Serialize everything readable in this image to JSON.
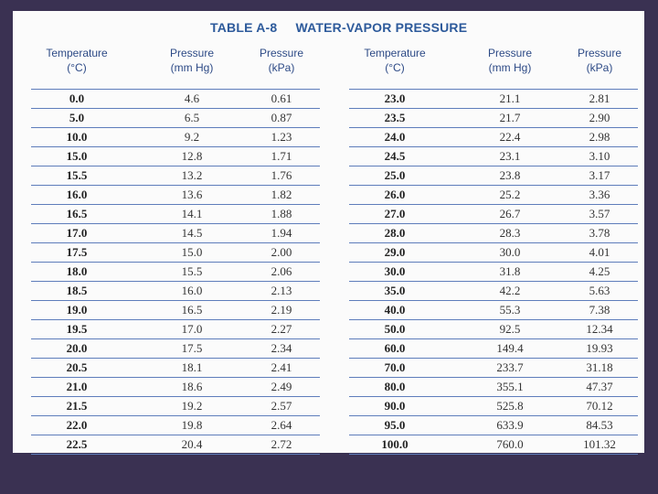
{
  "table": {
    "label": "TABLE A-8",
    "title": "WATER-VAPOR PRESSURE",
    "headers": [
      [
        "Temperature",
        "(°C)"
      ],
      [
        "Pressure",
        "(mm Hg)"
      ],
      [
        "Pressure",
        "(kPa)"
      ]
    ],
    "left": [
      [
        "0.0",
        "4.6",
        "0.61"
      ],
      [
        "5.0",
        "6.5",
        "0.87"
      ],
      [
        "10.0",
        "9.2",
        "1.23"
      ],
      [
        "15.0",
        "12.8",
        "1.71"
      ],
      [
        "15.5",
        "13.2",
        "1.76"
      ],
      [
        "16.0",
        "13.6",
        "1.82"
      ],
      [
        "16.5",
        "14.1",
        "1.88"
      ],
      [
        "17.0",
        "14.5",
        "1.94"
      ],
      [
        "17.5",
        "15.0",
        "2.00"
      ],
      [
        "18.0",
        "15.5",
        "2.06"
      ],
      [
        "18.5",
        "16.0",
        "2.13"
      ],
      [
        "19.0",
        "16.5",
        "2.19"
      ],
      [
        "19.5",
        "17.0",
        "2.27"
      ],
      [
        "20.0",
        "17.5",
        "2.34"
      ],
      [
        "20.5",
        "18.1",
        "2.41"
      ],
      [
        "21.0",
        "18.6",
        "2.49"
      ],
      [
        "21.5",
        "19.2",
        "2.57"
      ],
      [
        "22.0",
        "19.8",
        "2.64"
      ],
      [
        "22.5",
        "20.4",
        "2.72"
      ]
    ],
    "right": [
      [
        "23.0",
        "21.1",
        "2.81"
      ],
      [
        "23.5",
        "21.7",
        "2.90"
      ],
      [
        "24.0",
        "22.4",
        "2.98"
      ],
      [
        "24.5",
        "23.1",
        "3.10"
      ],
      [
        "25.0",
        "23.8",
        "3.17"
      ],
      [
        "26.0",
        "25.2",
        "3.36"
      ],
      [
        "27.0",
        "26.7",
        "3.57"
      ],
      [
        "28.0",
        "28.3",
        "3.78"
      ],
      [
        "29.0",
        "30.0",
        "4.01"
      ],
      [
        "30.0",
        "31.8",
        "4.25"
      ],
      [
        "35.0",
        "42.2",
        "5.63"
      ],
      [
        "40.0",
        "55.3",
        "7.38"
      ],
      [
        "50.0",
        "92.5",
        "12.34"
      ],
      [
        "60.0",
        "149.4",
        "19.93"
      ],
      [
        "70.0",
        "233.7",
        "31.18"
      ],
      [
        "80.0",
        "355.1",
        "47.37"
      ],
      [
        "90.0",
        "525.8",
        "70.12"
      ],
      [
        "95.0",
        "633.9",
        "84.53"
      ],
      [
        "100.0",
        "760.0",
        "101.32"
      ]
    ]
  }
}
